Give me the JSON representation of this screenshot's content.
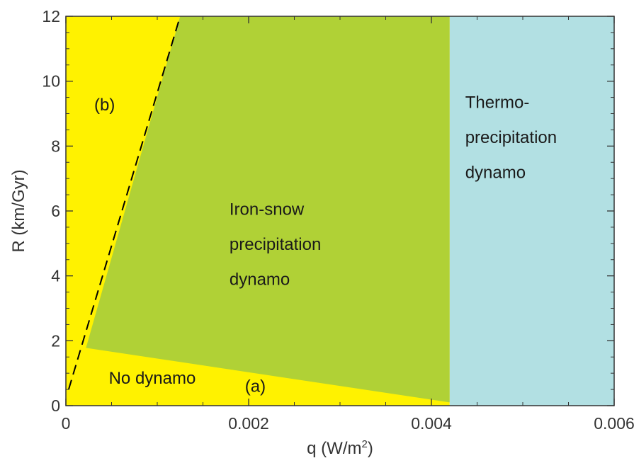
{
  "chart_data": {
    "type": "area",
    "xlabel_main": "q (W/m",
    "xlabel_sup": "2",
    "xlabel_end": ")",
    "ylabel": "R (km/Gyr)",
    "xlim": [
      0,
      0.006
    ],
    "ylim": [
      0,
      12
    ],
    "x_ticks": [
      0,
      0.002,
      0.004,
      0.006
    ],
    "x_tick_labels": [
      "0",
      "0.002",
      "0.004",
      "0.006"
    ],
    "y_ticks": [
      0,
      2,
      4,
      6,
      8,
      10,
      12
    ],
    "y_tick_labels": [
      "0",
      "2",
      "4",
      "6",
      "8",
      "10",
      "12"
    ],
    "regions": [
      {
        "id": "yellow-background",
        "color": "#fff200",
        "polygon": [
          [
            0,
            0
          ],
          [
            0.0042,
            0
          ],
          [
            0.0042,
            12
          ],
          [
            0,
            12
          ]
        ]
      },
      {
        "id": "iron-snow-precipitation-dynamo",
        "color": "#b0d136",
        "polygon": [
          [
            0.00022,
            1.78
          ],
          [
            0.00125,
            12
          ],
          [
            0.0042,
            12
          ],
          [
            0.0042,
            0.1
          ]
        ]
      },
      {
        "id": "thermo-precipitation-dynamo",
        "color": "#b2e0e3",
        "polygon": [
          [
            0.0042,
            0
          ],
          [
            0.006,
            0
          ],
          [
            0.006,
            12
          ],
          [
            0.0042,
            12
          ]
        ]
      }
    ],
    "boundary_lines": [
      {
        "id": "dashed-boundary-b",
        "style": "dashed",
        "color": "#000000",
        "points": [
          [
            3e-05,
            0.5
          ],
          [
            0.00125,
            12
          ]
        ]
      }
    ],
    "annotations": [
      {
        "id": "label-no-dynamo",
        "text": "No dynamo",
        "x": 0.00047,
        "y": 0.68
      },
      {
        "id": "label-a",
        "text": "(a)",
        "x": 0.00196,
        "y": 0.43
      },
      {
        "id": "label-b",
        "text": "(b)",
        "x": 0.00031,
        "y": 9.1
      },
      {
        "id": "label-iron-snow-1",
        "text": "Iron-snow",
        "x": 0.00179,
        "y": 5.88
      },
      {
        "id": "label-iron-snow-2",
        "text": "precipitation",
        "x": 0.00179,
        "y": 4.8
      },
      {
        "id": "label-iron-snow-3",
        "text": "dynamo",
        "x": 0.00179,
        "y": 3.72
      },
      {
        "id": "label-thermo-1",
        "text": "Thermo-",
        "x": 0.00437,
        "y": 9.17
      },
      {
        "id": "label-thermo-2",
        "text": "precipitation",
        "x": 0.00437,
        "y": 8.09
      },
      {
        "id": "label-thermo-3",
        "text": "dynamo",
        "x": 0.00437,
        "y": 7.01
      }
    ]
  }
}
